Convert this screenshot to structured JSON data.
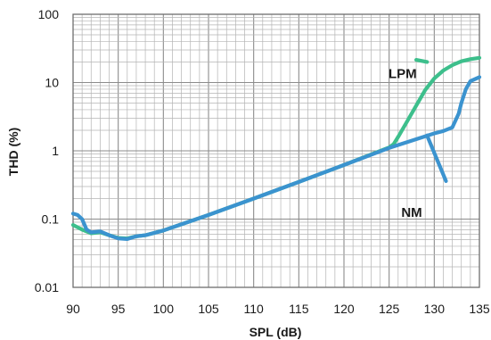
{
  "chart_data": {
    "type": "line",
    "title": "",
    "xlabel": "SPL (dB)",
    "ylabel": "THD (%)",
    "xlim": [
      90,
      135
    ],
    "ylim": [
      0.01,
      100
    ],
    "yscale": "log",
    "grid": true,
    "x_ticks": [
      "90",
      "95",
      "100",
      "105",
      "110",
      "115",
      "120",
      "125",
      "130",
      "135"
    ],
    "y_ticks": [
      "0.01",
      "0.1",
      "1",
      "10",
      "100"
    ],
    "series": [
      {
        "name": "LPM",
        "color": "#3dbf8c",
        "points": [
          [
            90,
            0.082
          ],
          [
            91,
            0.07
          ],
          [
            92,
            0.062
          ],
          [
            93,
            0.064
          ],
          [
            94,
            0.058
          ],
          [
            95,
            0.053
          ],
          [
            96,
            0.052
          ],
          [
            97,
            0.056
          ],
          [
            98,
            0.058
          ],
          [
            100,
            0.068
          ],
          [
            105,
            0.115
          ],
          [
            110,
            0.2
          ],
          [
            115,
            0.35
          ],
          [
            120,
            0.62
          ],
          [
            125,
            1.12
          ],
          [
            125.5,
            1.25
          ],
          [
            126,
            1.6
          ],
          [
            127,
            2.7
          ],
          [
            128,
            4.6
          ],
          [
            129,
            7.8
          ],
          [
            130,
            11.5
          ],
          [
            131,
            15
          ],
          [
            132,
            18
          ],
          [
            133,
            20.5
          ],
          [
            134,
            22
          ],
          [
            135,
            23
          ]
        ]
      },
      {
        "name": "NM",
        "color": "#3b93cf",
        "points": [
          [
            90,
            0.12
          ],
          [
            90.5,
            0.115
          ],
          [
            91,
            0.1
          ],
          [
            91.5,
            0.07
          ],
          [
            92,
            0.064
          ],
          [
            93,
            0.066
          ],
          [
            94,
            0.058
          ],
          [
            95,
            0.052
          ],
          [
            96,
            0.051
          ],
          [
            97,
            0.056
          ],
          [
            98,
            0.058
          ],
          [
            100,
            0.068
          ],
          [
            105,
            0.115
          ],
          [
            110,
            0.2
          ],
          [
            115,
            0.35
          ],
          [
            120,
            0.62
          ],
          [
            125,
            1.1
          ],
          [
            130,
            1.8
          ],
          [
            131,
            1.95
          ],
          [
            132,
            2.2
          ],
          [
            132.7,
            3.5
          ],
          [
            133,
            5
          ],
          [
            133.5,
            8
          ],
          [
            134,
            10.5
          ],
          [
            135,
            12
          ]
        ]
      }
    ],
    "labels": [
      {
        "text": "LPM",
        "x": 126.5,
        "y": 14,
        "pointer": [
          [
            129.2,
            20
          ],
          [
            128,
            21.5
          ]
        ]
      },
      {
        "text": "NM",
        "x": 127.5,
        "y": 0.13,
        "pointer": [
          [
            131.3,
            0.36
          ],
          [
            129.2,
            1.68
          ]
        ]
      }
    ]
  }
}
